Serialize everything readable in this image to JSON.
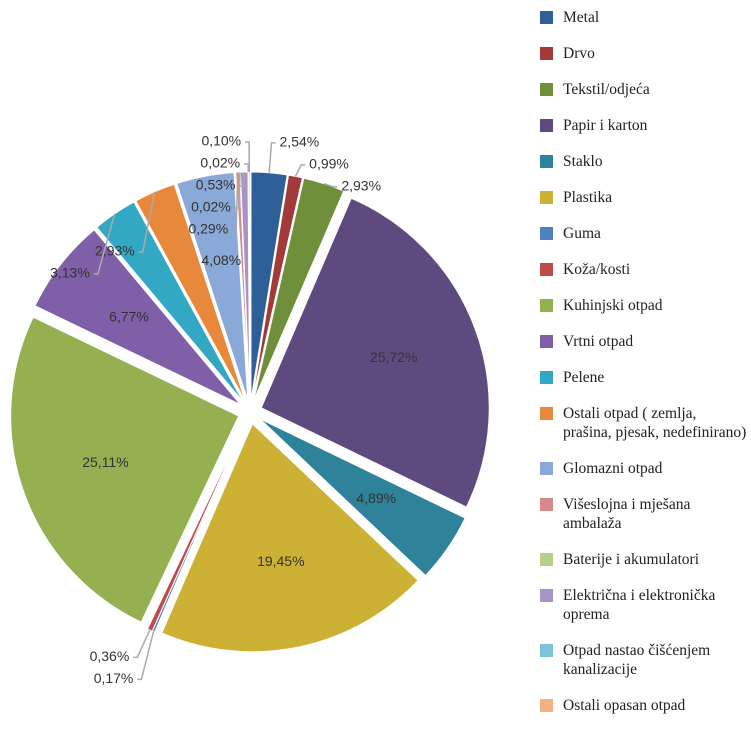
{
  "chart_data": {
    "type": "pie",
    "categories": [
      "Metal",
      "Drvo",
      "Tekstil/odjeća",
      "Papir i karton",
      "Staklo",
      "Plastika",
      "Guma",
      "Koža/kosti",
      "Kuhinjski otpad",
      "Vrtni otpad",
      "Pelene",
      "Ostali otpad ( zemlja, prašina, pjesak, nedefinirano)",
      "Glomazni otpad",
      "Višeslojna i mješana ambalaža",
      "Baterije i akumulatori",
      "Električna i elektronička oprema",
      "Otpad nastao čišćenjem kanalizacije",
      "Ostali opasan otpad"
    ],
    "values": [
      2.54,
      0.99,
      2.93,
      25.72,
      4.89,
      19.45,
      0.17,
      0.36,
      25.11,
      6.77,
      3.13,
      2.93,
      4.08,
      0.29,
      0.02,
      0.53,
      0.02,
      0.1
    ],
    "value_labels": [
      "2,54%",
      "0,99%",
      "2,93%",
      "25,72%",
      "4,89%",
      "19,45%",
      "0,17%",
      "0,36%",
      "25,11%",
      "6,77%",
      "3,13%",
      "2,93%",
      "4,08%",
      "0,29%",
      "0,02%",
      "0,53%",
      "0,02%",
      "0,10%"
    ],
    "colors": [
      "#2f5f98",
      "#a33a3a",
      "#6f8f3a",
      "#5e4a7e",
      "#2e8299",
      "#cdb134",
      "#4f7fbf",
      "#bf4a4a",
      "#94b050",
      "#7e5fa8",
      "#33a8c4",
      "#e8883a",
      "#8aa9d8",
      "#d48a8a",
      "#b5cf8a",
      "#a893c8",
      "#7fc4d8",
      "#f5b07f"
    ],
    "legend": "right"
  }
}
